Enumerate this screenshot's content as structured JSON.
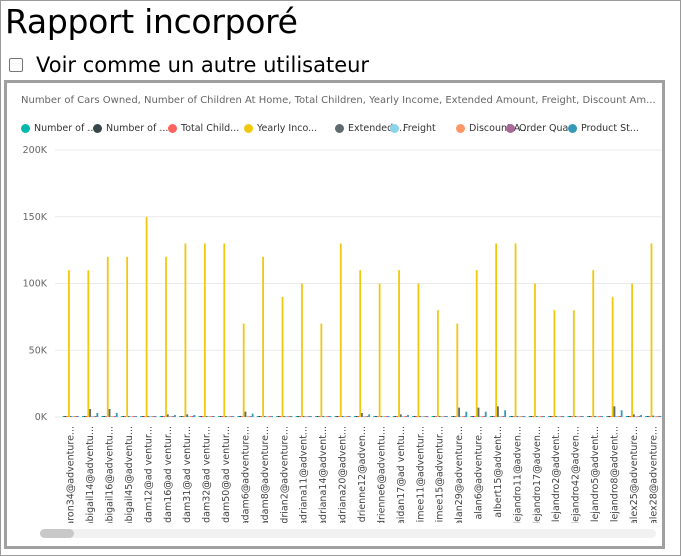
{
  "page": {
    "title": "Rapport incorporé",
    "view_as_label": "Voir comme un autre utilisateur"
  },
  "report": {
    "chart_title": "Number of Cars Owned, Number of Children At Home, Total Children, Yearly Income, Extended Amount, Freight, Discount Am...",
    "legend": [
      {
        "label": "Number of ...",
        "color": "#01B8AA"
      },
      {
        "label": "Number of ...",
        "color": "#374649"
      },
      {
        "label": "Total Child...",
        "color": "#FD625E"
      },
      {
        "label": "Yearly Inco...",
        "color": "#F2C80F"
      },
      {
        "label": "Extended ...",
        "color": "#5F6B6D"
      },
      {
        "label": "Freight",
        "color": "#8AD4EB"
      },
      {
        "label": "Discount A...",
        "color": "#FE9666"
      },
      {
        "label": "Order Qua...",
        "color": "#A66999"
      },
      {
        "label": "Product St...",
        "color": "#3599B8"
      }
    ]
  },
  "chart_data": {
    "type": "bar",
    "y_ticks": [
      "200K",
      "150K",
      "100K",
      "50K",
      "0K"
    ],
    "ylim": [
      0,
      200000
    ],
    "grid": true,
    "categories": [
      "aaron34@adventure...",
      "abigail14@adventu...",
      "abigail16@adventu...",
      "abigail45@adventu...",
      "adam12@ad ventur...",
      "adam16@ad ventur...",
      "adam31@ad ventur...",
      "adam32@ad ventur...",
      "adam50@ad ventur...",
      "adam6@adventure...",
      "adam8@adventure...",
      "adrian2@adventure...",
      "adriana11@advent...",
      "adriana14@advent...",
      "adriana20@advent...",
      "adrienne12@adven...",
      "adrienne6@adventu...",
      "aidan17@ad ventu...",
      "aimee11@adventur...",
      "aimee15@adventur...",
      "alan29@adventure...",
      "alan6@adventure...",
      "albert15@advent...",
      "alejandro11@adven...",
      "alejandro17@adven...",
      "alejandro2@advent...",
      "alejandro42@adven...",
      "alejandro5@advent...",
      "alejandro8@advent...",
      "alex25@adventure...",
      "alex28@adventure..."
    ],
    "series": [
      {
        "name": "Number of ...",
        "values": [
          2,
          2,
          2,
          2,
          1,
          2,
          2,
          2,
          2,
          2,
          1,
          2,
          2,
          1,
          2,
          2,
          2,
          2,
          2,
          1,
          2,
          2,
          2,
          2,
          2,
          2,
          2,
          2,
          2,
          2,
          2
        ]
      },
      {
        "name": "Number of ...",
        "values": [
          0,
          0,
          0,
          0,
          0,
          0,
          0,
          0,
          0,
          0,
          0,
          0,
          0,
          0,
          0,
          0,
          0,
          0,
          0,
          0,
          0,
          0,
          0,
          0,
          0,
          0,
          0,
          0,
          0,
          0,
          0
        ]
      },
      {
        "name": "Total Child...",
        "values": [
          2,
          2,
          2,
          2,
          2,
          2,
          2,
          2,
          2,
          2,
          2,
          2,
          2,
          2,
          2,
          2,
          2,
          2,
          2,
          2,
          2,
          2,
          2,
          2,
          2,
          2,
          2,
          2,
          2,
          2,
          2
        ]
      },
      {
        "name": "Yearly Inco...",
        "values": [
          110000,
          110000,
          120000,
          120000,
          150000,
          120000,
          130000,
          130000,
          130000,
          70000,
          120000,
          90000,
          100000,
          70000,
          130000,
          110000,
          100000,
          110000,
          100000,
          80000,
          70000,
          110000,
          130000,
          130000,
          100000,
          80000,
          80000,
          110000,
          90000,
          100000,
          130000
        ]
      },
      {
        "name": "Extended ...",
        "values": [
          500,
          6000,
          6000,
          500,
          500,
          2000,
          2000,
          500,
          500,
          4000,
          500,
          500,
          500,
          500,
          500,
          3000,
          500,
          2000,
          500,
          500,
          7000,
          7000,
          8000,
          500,
          500,
          500,
          500,
          500,
          8000,
          2000,
          1000
        ]
      },
      {
        "name": "Freight",
        "values": [
          400,
          400,
          400,
          400,
          400,
          400,
          400,
          400,
          400,
          400,
          400,
          400,
          400,
          400,
          400,
          400,
          400,
          400,
          400,
          400,
          400,
          400,
          400,
          400,
          400,
          400,
          400,
          400,
          400,
          400,
          400
        ]
      },
      {
        "name": "Discount A...",
        "values": [
          0,
          0,
          0,
          0,
          0,
          0,
          0,
          0,
          0,
          0,
          0,
          0,
          0,
          0,
          0,
          0,
          0,
          0,
          0,
          0,
          0,
          0,
          0,
          0,
          0,
          0,
          0,
          0,
          0,
          0,
          0
        ]
      },
      {
        "name": "Order Qua...",
        "values": [
          5,
          5,
          5,
          5,
          5,
          5,
          5,
          5,
          5,
          5,
          5,
          5,
          5,
          5,
          5,
          5,
          5,
          5,
          5,
          5,
          5,
          5,
          5,
          5,
          5,
          5,
          5,
          5,
          5,
          5,
          5
        ]
      },
      {
        "name": "Product St...",
        "values": [
          300,
          3000,
          3000,
          300,
          300,
          1500,
          1500,
          300,
          300,
          2500,
          300,
          300,
          300,
          300,
          300,
          2000,
          300,
          1500,
          300,
          300,
          4000,
          4000,
          5000,
          300,
          300,
          300,
          300,
          300,
          5000,
          1500,
          800
        ]
      }
    ]
  }
}
